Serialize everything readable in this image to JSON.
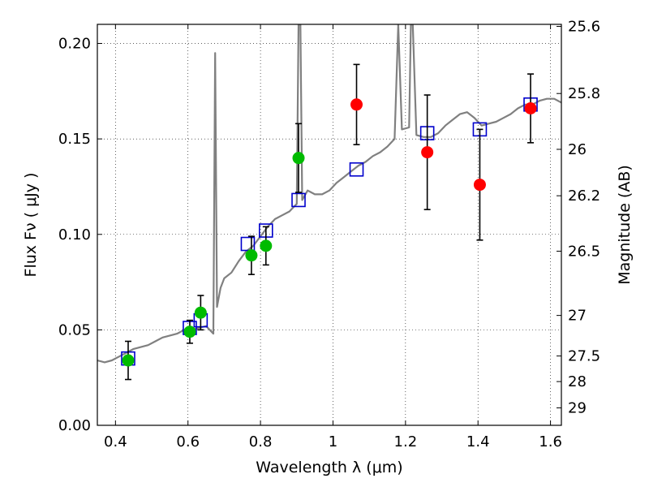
{
  "chart_data": {
    "type": "scatter",
    "xlabel": "Wavelength  λ (μm)",
    "ylabel": "Flux  Fν  ( μJy )",
    "y2label": "Magnitude (AB)",
    "xlim": [
      0.35,
      1.63
    ],
    "ylim": [
      0.0,
      0.21
    ],
    "grid": true,
    "x_ticks": [
      {
        "v": 0.4,
        "label": "0.4"
      },
      {
        "v": 0.6,
        "label": "0.6"
      },
      {
        "v": 0.8,
        "label": "0.8"
      },
      {
        "v": 1.0,
        "label": "1"
      },
      {
        "v": 1.2,
        "label": "1.2"
      },
      {
        "v": 1.4,
        "label": "1.4"
      },
      {
        "v": 1.6,
        "label": "1.6"
      }
    ],
    "y_ticks": [
      {
        "v": 0.0,
        "label": "0.00"
      },
      {
        "v": 0.05,
        "label": "0.05"
      },
      {
        "v": 0.1,
        "label": "0.10"
      },
      {
        "v": 0.15,
        "label": "0.15"
      },
      {
        "v": 0.2,
        "label": "0.20"
      }
    ],
    "y2_ticks": [
      {
        "mag": 25.6,
        "label": "25.6"
      },
      {
        "mag": 25.8,
        "label": "25.8"
      },
      {
        "mag": 26.0,
        "label": "26"
      },
      {
        "mag": 26.2,
        "label": "26.2"
      },
      {
        "mag": 26.5,
        "label": "26.5"
      },
      {
        "mag": 27.0,
        "label": "27"
      },
      {
        "mag": 27.5,
        "label": "27.5"
      },
      {
        "mag": 28.0,
        "label": "28"
      },
      {
        "mag": 29.0,
        "label": "29"
      }
    ],
    "series": [
      {
        "kind": "line",
        "color": "#808080",
        "points": [
          [
            0.35,
            0.034
          ],
          [
            0.37,
            0.033
          ],
          [
            0.39,
            0.034
          ],
          [
            0.41,
            0.036
          ],
          [
            0.43,
            0.038
          ],
          [
            0.45,
            0.04
          ],
          [
            0.47,
            0.041
          ],
          [
            0.49,
            0.042
          ],
          [
            0.51,
            0.044
          ],
          [
            0.53,
            0.046
          ],
          [
            0.55,
            0.047
          ],
          [
            0.57,
            0.048
          ],
          [
            0.59,
            0.05
          ],
          [
            0.61,
            0.05
          ],
          [
            0.63,
            0.051
          ],
          [
            0.65,
            0.052
          ],
          [
            0.66,
            0.05
          ],
          [
            0.67,
            0.048
          ],
          [
            0.675,
            0.195
          ],
          [
            0.68,
            0.062
          ],
          [
            0.69,
            0.072
          ],
          [
            0.7,
            0.077
          ],
          [
            0.72,
            0.08
          ],
          [
            0.74,
            0.086
          ],
          [
            0.76,
            0.091
          ],
          [
            0.78,
            0.094
          ],
          [
            0.8,
            0.099
          ],
          [
            0.82,
            0.104
          ],
          [
            0.84,
            0.108
          ],
          [
            0.86,
            0.11
          ],
          [
            0.88,
            0.112
          ],
          [
            0.89,
            0.114
          ],
          [
            0.9,
            0.116
          ],
          [
            0.905,
            0.21
          ],
          [
            0.91,
            0.21
          ],
          [
            0.915,
            0.118
          ],
          [
            0.93,
            0.123
          ],
          [
            0.95,
            0.121
          ],
          [
            0.97,
            0.121
          ],
          [
            0.99,
            0.123
          ],
          [
            1.01,
            0.127
          ],
          [
            1.03,
            0.13
          ],
          [
            1.05,
            0.133
          ],
          [
            1.07,
            0.136
          ],
          [
            1.09,
            0.138
          ],
          [
            1.11,
            0.141
          ],
          [
            1.13,
            0.143
          ],
          [
            1.15,
            0.146
          ],
          [
            1.17,
            0.15
          ],
          [
            1.18,
            0.21
          ],
          [
            1.19,
            0.155
          ],
          [
            1.21,
            0.156
          ],
          [
            1.215,
            0.21
          ],
          [
            1.22,
            0.21
          ],
          [
            1.23,
            0.152
          ],
          [
            1.25,
            0.151
          ],
          [
            1.27,
            0.151
          ],
          [
            1.29,
            0.153
          ],
          [
            1.31,
            0.157
          ],
          [
            1.33,
            0.16
          ],
          [
            1.35,
            0.163
          ],
          [
            1.37,
            0.164
          ],
          [
            1.39,
            0.161
          ],
          [
            1.41,
            0.157
          ],
          [
            1.43,
            0.158
          ],
          [
            1.45,
            0.159
          ],
          [
            1.47,
            0.161
          ],
          [
            1.49,
            0.163
          ],
          [
            1.51,
            0.166
          ],
          [
            1.53,
            0.168
          ],
          [
            1.55,
            0.168
          ],
          [
            1.57,
            0.17
          ],
          [
            1.59,
            0.171
          ],
          [
            1.61,
            0.171
          ],
          [
            1.63,
            0.169
          ]
        ]
      },
      {
        "kind": "boxes",
        "color": "#0000cc",
        "points": [
          [
            0.435,
            0.035
          ],
          [
            0.605,
            0.051
          ],
          [
            0.635,
            0.055
          ],
          [
            0.765,
            0.095
          ],
          [
            0.815,
            0.102
          ],
          [
            0.905,
            0.118
          ],
          [
            1.065,
            0.134
          ],
          [
            1.26,
            0.153
          ],
          [
            1.405,
            0.155
          ],
          [
            1.545,
            0.168
          ]
        ]
      },
      {
        "kind": "points",
        "color": "#00bb00",
        "points": [
          [
            0.435,
            0.034
          ],
          [
            0.605,
            0.049
          ],
          [
            0.635,
            0.059
          ],
          [
            0.775,
            0.089
          ],
          [
            0.815,
            0.094
          ],
          [
            0.905,
            0.14
          ]
        ],
        "err": [
          0.01,
          0.006,
          0.009,
          0.01,
          0.01,
          0.018
        ]
      },
      {
        "kind": "points",
        "color": "#ff0000",
        "points": [
          [
            1.065,
            0.168
          ],
          [
            1.26,
            0.143
          ],
          [
            1.405,
            0.126
          ],
          [
            1.545,
            0.166
          ]
        ],
        "err": [
          0.021,
          0.03,
          0.029,
          0.018
        ]
      }
    ]
  }
}
